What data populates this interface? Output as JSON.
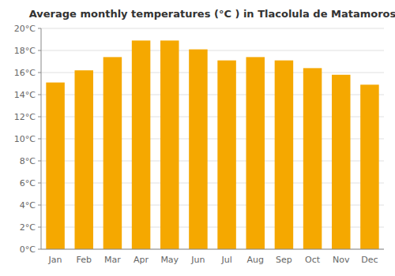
{
  "chart_data": {
    "type": "bar",
    "title": "Average monthly temperatures (°C ) in Tlacolula de Matamoros",
    "categories": [
      "Jan",
      "Feb",
      "Mar",
      "Apr",
      "May",
      "Jun",
      "Jul",
      "Aug",
      "Sep",
      "Oct",
      "Nov",
      "Dec"
    ],
    "values": [
      15.1,
      16.2,
      17.4,
      18.9,
      18.9,
      18.1,
      17.1,
      17.4,
      17.1,
      16.4,
      15.8,
      14.9
    ],
    "color": "#F5A800",
    "ylim": [
      0,
      20
    ],
    "yticks": [
      {
        "value": 0,
        "label": "0°C"
      },
      {
        "value": 2,
        "label": "2°C"
      },
      {
        "value": 4,
        "label": "4°C"
      },
      {
        "value": 6,
        "label": "6°C"
      },
      {
        "value": 8,
        "label": "8°C"
      },
      {
        "value": 10,
        "label": "10°C"
      },
      {
        "value": 12,
        "label": "12°C"
      },
      {
        "value": 14,
        "label": "14°C"
      },
      {
        "value": 16,
        "label": "16°C"
      },
      {
        "value": 18,
        "label": "18°C"
      },
      {
        "value": 20,
        "label": "20°C"
      }
    ],
    "grid": true
  }
}
